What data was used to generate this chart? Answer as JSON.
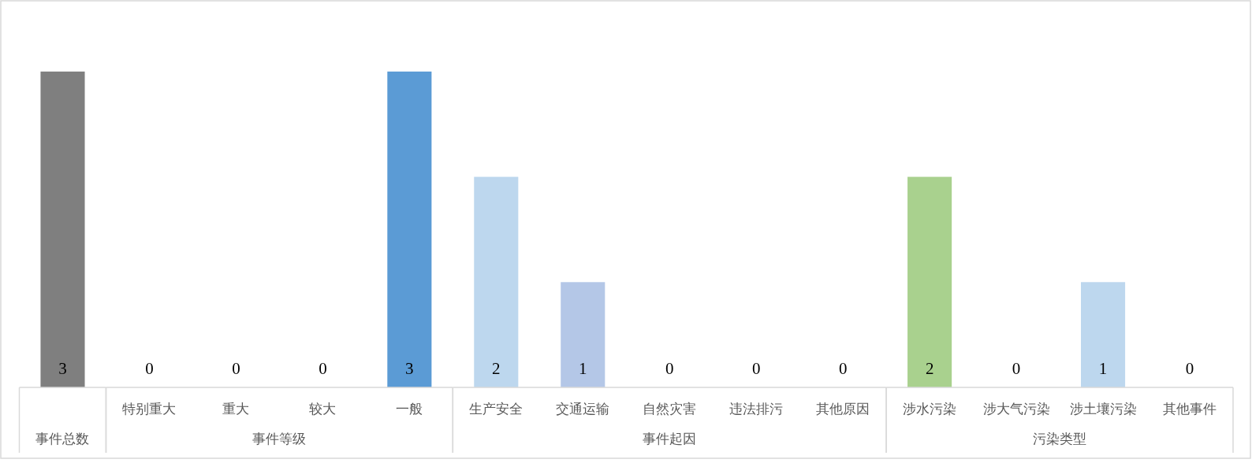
{
  "chart_data": [
    {
      "type": "bar",
      "categories": [
        "事件总数"
      ],
      "values": [
        3
      ],
      "colors": [
        "#7f7f7f"
      ],
      "data_labels": true
    },
    {
      "type": "bar",
      "categories": [
        "特别重大",
        "重大",
        "较大",
        "一般"
      ],
      "values": [
        0,
        0,
        0,
        3
      ],
      "colors": [
        "#5b9bd5",
        "#5b9bd5",
        "#5b9bd5",
        "#5b9bd5"
      ],
      "data_labels": true,
      "xlabel": "事件等级"
    },
    {
      "type": "bar",
      "categories": [
        "生产安全",
        "交通运输",
        "自然灾害",
        "违法排污",
        "其他原因"
      ],
      "values": [
        2,
        1,
        0,
        0,
        0
      ],
      "colors": [
        "#bdd7ee",
        "#b4c7e7",
        "#b4c7e7",
        "#b4c7e7",
        "#b4c7e7"
      ],
      "data_labels": true,
      "xlabel": "事件起因"
    },
    {
      "type": "bar",
      "categories": [
        "涉水污染",
        "涉大气污染",
        "涉土壤污染",
        "其他事件"
      ],
      "values": [
        2,
        0,
        1,
        0
      ],
      "colors": [
        "#a9d18e",
        "#a9d18e",
        "#bdd7ee",
        "#bdd7ee"
      ],
      "data_labels": true,
      "xlabel": "污染类型"
    }
  ]
}
